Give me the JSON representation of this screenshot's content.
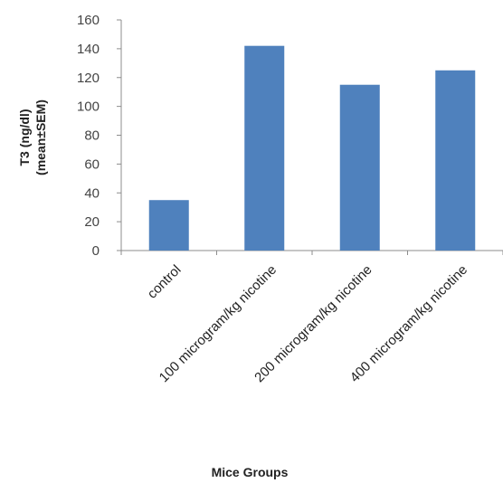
{
  "chart_data": {
    "type": "bar",
    "categories": [
      "control",
      "100 microgram/kg nicotine",
      "200 microgram/kg nicotine",
      "400 microgram/kg nicotine"
    ],
    "values": [
      35,
      142,
      115,
      125
    ],
    "title": "",
    "xlabel": "Mice Groups",
    "ylabel_line1": "T3 (ng/dl)",
    "ylabel_line2": "(mean±SEM)",
    "ylim": [
      0,
      160
    ],
    "yticks": [
      "0",
      "20",
      "40",
      "60",
      "80",
      "100",
      "120",
      "140",
      "160"
    ],
    "grid": false,
    "legend": "none",
    "bar_color": "#4f81bd",
    "axis_color": "#8c8c8c"
  }
}
